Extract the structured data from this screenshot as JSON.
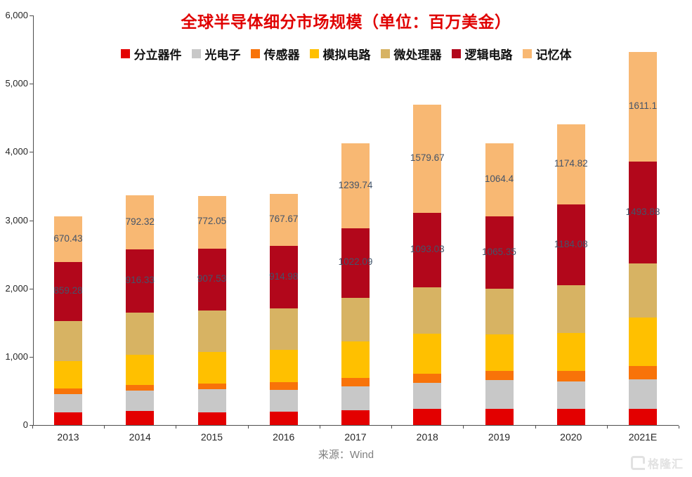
{
  "chart_data": {
    "type": "bar",
    "stacked": true,
    "title": "全球半导体细分市场规模（单位：百万美金）",
    "source": "来源：Wind",
    "categories": [
      "2013",
      "2014",
      "2015",
      "2016",
      "2017",
      "2018",
      "2019",
      "2020",
      "2021E"
    ],
    "series": [
      {
        "name": "分立器件",
        "color": "#e30000",
        "values": [
          181.5,
          201.6,
          188.8,
          194.2,
          216.5,
          241.0,
          238.8,
          238.0,
          236.0
        ]
      },
      {
        "name": "光电子",
        "color": "#c8c8c8",
        "values": [
          275.7,
          299.4,
          333.7,
          321.2,
          348.9,
          380.3,
          415.6,
          404.0,
          432.0
        ]
      },
      {
        "name": "传感器",
        "color": "#f87309",
        "values": [
          79.8,
          85.6,
          88.1,
          107.6,
          126.1,
          133.6,
          135.1,
          149.6,
          195.0
        ]
      },
      {
        "name": "模拟电路",
        "color": "#ffc000",
        "values": [
          401.2,
          443.7,
          456.6,
          478.5,
          530.7,
          587.9,
          539.3,
          556.6,
          709.0
        ]
      },
      {
        "name": "微处理器",
        "color": "#d7b363",
        "values": [
          586.9,
          621.3,
          612.9,
          605.8,
          639.3,
          672.4,
          664.4,
          696.8,
          792.0
        ]
      },
      {
        "name": "逻辑电路",
        "color": "#b2071b",
        "values": [
          859.28,
          916.33,
          907.53,
          914.98,
          1022.09,
          1093.03,
          1065.35,
          1184.08,
          1493.88
        ],
        "labels": [
          "859.28",
          "916.33",
          "907.53",
          "914.98",
          "1022.09",
          "1093.03",
          "1065.35",
          "1184.08",
          "1493.88"
        ]
      },
      {
        "name": "记忆体",
        "color": "#f8b873",
        "values": [
          670.43,
          792.32,
          772.05,
          767.67,
          1239.74,
          1579.67,
          1064.4,
          1174.82,
          1611.1
        ],
        "labels": [
          "670.43",
          "792.32",
          "772.05",
          "767.67",
          "1239.74",
          "1579.67",
          "1064.4",
          "1174.82",
          "1611.1"
        ]
      }
    ],
    "ylim": [
      0,
      6000
    ],
    "ytick_step": 1000,
    "ytick_labels": [
      "0",
      "1,000",
      "2,000",
      "3,000",
      "4,000",
      "5,000",
      "6,000"
    ],
    "grid": false,
    "legend_position": "top"
  },
  "watermark": {
    "logo": "gelonghui-logo",
    "text": "格隆汇"
  }
}
